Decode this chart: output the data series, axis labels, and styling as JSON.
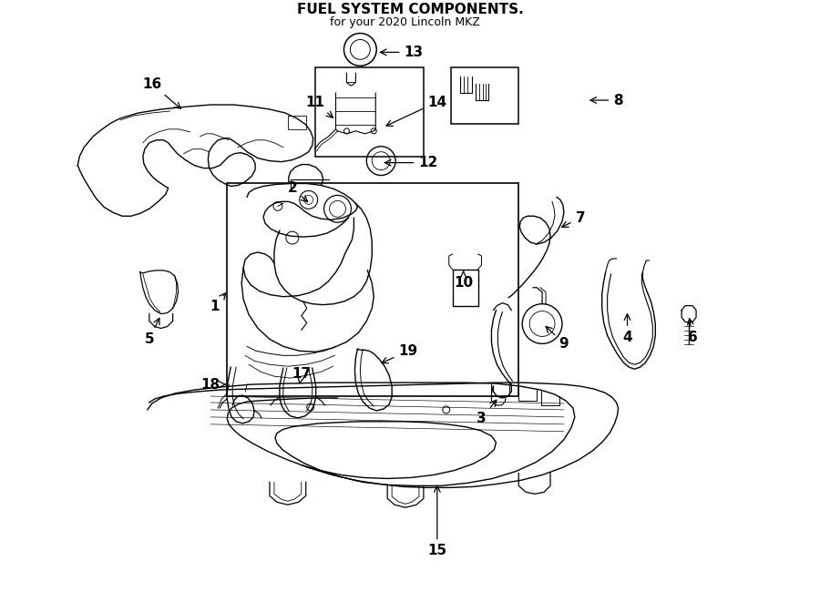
{
  "bg": "#ffffff",
  "lc": "#000000",
  "fig_w": 9.0,
  "fig_h": 6.61,
  "dpi": 100,
  "title": "FUEL SYSTEM COMPONENTS.",
  "subtitle": "for your 2020 Lincoln MKZ   "
}
